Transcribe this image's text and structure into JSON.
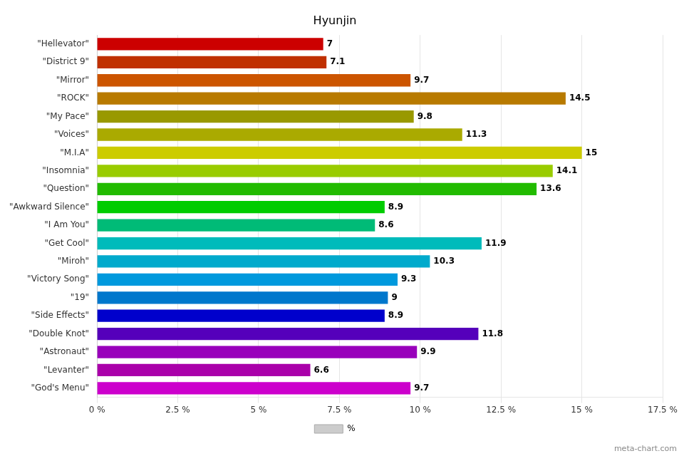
{
  "chart_data": {
    "type": "bar",
    "orientation": "horizontal",
    "title": "Hyunjin",
    "categories": [
      "\"Hellevator\"",
      "\"District 9\"",
      "\"Mirror\"",
      "\"ROCK\"",
      "\"My Pace\"",
      "\"Voices\"",
      "\"M.I.A\"",
      "\"Insomnia\"",
      "\"Question\"",
      "\"Awkward Silence\"",
      "\"I Am You\"",
      "\"Get Cool\"",
      "\"Miroh\"",
      "\"Victory Song\"",
      "\"19\"",
      "\"Side Effects\"",
      "\"Double Knot\"",
      "\"Astronaut\"",
      "\"Levanter\"",
      "\"God's Menu\""
    ],
    "series": [
      {
        "name": "%",
        "color": "#cccccc",
        "colors": [
          "#cc0000",
          "#c03000",
          "#cc5500",
          "#b87a00",
          "#999900",
          "#aaaa00",
          "#cccc00",
          "#99cc00",
          "#22bb00",
          "#00cc00",
          "#00bb77",
          "#00bbbb",
          "#00aacc",
          "#0099dd",
          "#0077cc",
          "#0000cc",
          "#5500bb",
          "#9900bb",
          "#aa00aa",
          "#cc00cc"
        ],
        "values": [
          7,
          7.1,
          9.7,
          14.5,
          9.8,
          11.3,
          15,
          14.1,
          13.6,
          8.9,
          8.6,
          11.9,
          10.3,
          9.3,
          9,
          8.9,
          11.8,
          9.9,
          6.6,
          9.7
        ]
      }
    ],
    "xlim": [
      0,
      17.5
    ],
    "xticks": [
      {
        "value": 0,
        "label": "0 %"
      },
      {
        "value": 2.5,
        "label": "2.5 %"
      },
      {
        "value": 5,
        "label": "5 %"
      },
      {
        "value": 7.5,
        "label": "7.5 %"
      },
      {
        "value": 10,
        "label": "10 %"
      },
      {
        "value": 12.5,
        "label": "12.5 %"
      },
      {
        "value": 15,
        "label": "15 %"
      },
      {
        "value": 17.5,
        "label": "17.5 %"
      }
    ],
    "grid": true,
    "data_labels": true,
    "legend": "bottom",
    "annotations": [
      "meta-chart.com"
    ]
  }
}
